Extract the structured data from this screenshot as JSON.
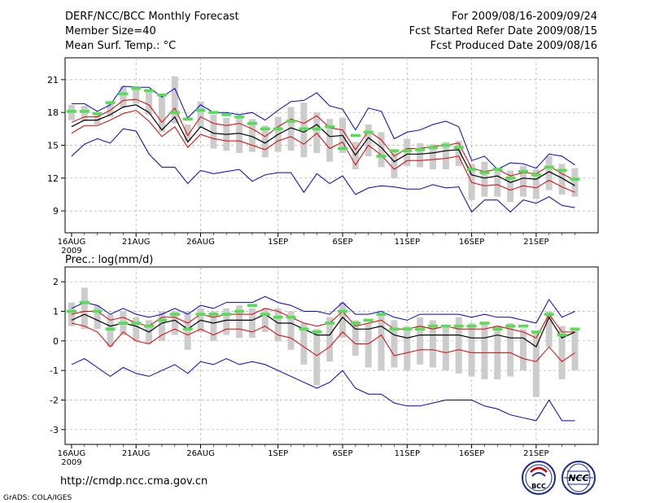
{
  "header": {
    "left": [
      "DERF/NCC/BCC Monthly Forecast",
      "Member Size=40",
      "Mean Surf. Temp.: °C"
    ],
    "right": [
      "For 2009/08/16-2009/09/24",
      "Fcst Started Refer Date 2009/08/15",
      "Fcst Produced Date 2009/08/16"
    ]
  },
  "footer": {
    "url": "http://cmdp.ncc.cma.gov.cn",
    "credit": "GrADS: COLA/IGES"
  },
  "logos": {
    "bcc": "BCC",
    "ncc": "NCC"
  },
  "colors": {
    "max_min": "#0000cc",
    "plus_minus": "#dd0000",
    "mean": "#000000",
    "obs": "#55dd55",
    "box": "#cccccc"
  },
  "chart_data": [
    {
      "type": "line",
      "title": "Mean Surf. Temp.: °C",
      "xlabel": "",
      "ylabel": "",
      "x_ticks": [
        "16AUG",
        "21AUG",
        "26AUG",
        "1SEP",
        "6SEP",
        "11SEP",
        "16SEP",
        "21SEP"
      ],
      "x_tick_days": [
        1,
        6,
        11,
        17,
        22,
        27,
        32,
        37
      ],
      "x_year_label": "2009",
      "ylim": [
        7,
        23
      ],
      "y_ticks": [
        9,
        12,
        15,
        18,
        21
      ],
      "x": [
        1,
        2,
        3,
        4,
        5,
        6,
        7,
        8,
        9,
        10,
        11,
        12,
        13,
        14,
        15,
        16,
        17,
        18,
        19,
        20,
        21,
        22,
        23,
        24,
        25,
        26,
        27,
        28,
        29,
        30,
        31,
        32,
        33,
        34,
        35,
        36,
        37,
        38,
        39,
        40
      ],
      "series": [
        {
          "name": "max",
          "values": [
            18.8,
            18.8,
            18.1,
            18.7,
            20.4,
            20.3,
            20.3,
            19.4,
            20.2,
            17.5,
            18.7,
            18.0,
            18.0,
            17.8,
            18.0,
            17.3,
            18.2,
            19.0,
            19.1,
            19.8,
            18.6,
            18.3,
            16.4,
            18.4,
            18.1,
            15.6,
            16.2,
            16.4,
            16.9,
            17.2,
            16.7,
            13.6,
            14.0,
            12.8,
            13.4,
            13.3,
            12.9,
            14.2,
            14.0,
            13.2
          ]
        },
        {
          "name": "mean+sd",
          "values": [
            17.1,
            17.6,
            17.6,
            18.2,
            19.1,
            19.2,
            18.7,
            17.1,
            18.4,
            15.9,
            17.6,
            17.0,
            16.8,
            17.0,
            16.5,
            15.8,
            16.7,
            17.4,
            17.0,
            17.7,
            16.6,
            16.4,
            14.6,
            16.3,
            15.5,
            14.0,
            14.7,
            14.7,
            14.9,
            15.0,
            15.2,
            12.9,
            12.6,
            12.8,
            12.2,
            12.5,
            12.4,
            13.1,
            12.4,
            11.8
          ]
        },
        {
          "name": "mean",
          "values": [
            16.7,
            17.3,
            17.3,
            17.8,
            18.5,
            18.7,
            18.0,
            16.4,
            17.6,
            15.3,
            16.7,
            16.1,
            16.0,
            16.1,
            15.8,
            15.2,
            16.0,
            16.6,
            16.2,
            16.9,
            15.8,
            15.9,
            14.1,
            15.7,
            14.8,
            13.5,
            14.2,
            14.2,
            14.3,
            14.5,
            14.6,
            12.3,
            12.0,
            12.2,
            11.6,
            12.0,
            11.9,
            12.6,
            12.0,
            11.3
          ]
        },
        {
          "name": "mean-sd",
          "values": [
            16.1,
            16.8,
            16.8,
            17.3,
            17.9,
            18.2,
            17.2,
            15.8,
            16.7,
            14.8,
            16.0,
            15.6,
            15.4,
            15.4,
            15.0,
            14.6,
            15.4,
            15.8,
            15.1,
            16.1,
            14.7,
            15.3,
            13.2,
            15.0,
            14.1,
            12.8,
            13.6,
            13.6,
            13.7,
            13.8,
            14.0,
            11.6,
            11.3,
            11.4,
            10.9,
            11.3,
            11.1,
            11.8,
            11.2,
            10.7
          ]
        },
        {
          "name": "min",
          "values": [
            14.0,
            15.1,
            15.6,
            15.2,
            16.5,
            16.3,
            14.2,
            13.0,
            13.0,
            11.5,
            12.7,
            12.4,
            12.6,
            12.8,
            11.7,
            12.3,
            12.5,
            12.5,
            10.7,
            12.4,
            11.5,
            12.2,
            10.5,
            11.1,
            11.3,
            11.2,
            11.0,
            11.0,
            11.4,
            11.1,
            11.2,
            8.9,
            10.0,
            10.0,
            8.9,
            10.0,
            9.7,
            10.3,
            9.5,
            9.3
          ]
        },
        {
          "name": "observed",
          "values": [
            18.1,
            18.1,
            17.9,
            18.9,
            19.7,
            20.2,
            20.0,
            19.6,
            18.0,
            17.4,
            18.2,
            18.0,
            17.8,
            17.6,
            17.0,
            16.5,
            16.5,
            17.2,
            16.5,
            16.5,
            16.7,
            14.7,
            15.9,
            16.2,
            14.0,
            14.5,
            14.5,
            14.6,
            14.8,
            15.0,
            14.8,
            12.8,
            12.5,
            12.8,
            12.0,
            12.6,
            12.3,
            13.0,
            12.7,
            11.9
          ]
        }
      ],
      "boxes": {
        "low": [
          17.3,
          17.2,
          16.9,
          17.6,
          18.5,
          18.8,
          17.8,
          16.2,
          17.0,
          15.4,
          16.6,
          14.7,
          14.5,
          14.3,
          14.4,
          13.9,
          14.4,
          14.5,
          13.9,
          14.3,
          13.5,
          14.3,
          12.8,
          14.0,
          13.0,
          12.0,
          13.1,
          13.0,
          12.8,
          12.8,
          13.1,
          10.0,
          10.3,
          10.3,
          9.8,
          10.3,
          10.1,
          10.9,
          10.5,
          10.3
        ],
        "high": [
          18.7,
          18.6,
          18.0,
          18.9,
          20.4,
          20.4,
          20.1,
          19.7,
          21.3,
          16.9,
          19.0,
          17.8,
          17.5,
          17.5,
          17.4,
          16.8,
          17.6,
          18.5,
          18.9,
          18.0,
          17.4,
          17.5,
          15.3,
          16.9,
          16.2,
          14.6,
          15.6,
          15.2,
          15.1,
          15.3,
          15.4,
          13.3,
          13.5,
          12.8,
          12.7,
          13.1,
          12.8,
          14.0,
          13.3,
          12.9
        ]
      }
    },
    {
      "type": "line",
      "title": "Prec.: log(mm/d)",
      "xlabel": "",
      "ylabel": "",
      "x_ticks": [
        "16AUG",
        "21AUG",
        "26AUG",
        "1SEP",
        "6SEP",
        "11SEP",
        "16SEP",
        "21SEP"
      ],
      "x_tick_days": [
        1,
        6,
        11,
        17,
        22,
        27,
        32,
        37
      ],
      "x_year_label": "2009",
      "ylim": [
        -3.5,
        2.5
      ],
      "y_ticks": [
        -3,
        -2,
        -1,
        0,
        1,
        2
      ],
      "x": [
        1,
        2,
        3,
        4,
        5,
        6,
        7,
        8,
        9,
        10,
        11,
        12,
        13,
        14,
        15,
        16,
        17,
        18,
        19,
        20,
        21,
        22,
        23,
        24,
        25,
        26,
        27,
        28,
        29,
        30,
        31,
        32,
        33,
        34,
        35,
        36,
        37,
        38,
        39,
        40
      ],
      "series": [
        {
          "name": "max",
          "values": [
            1.1,
            1.3,
            1.2,
            0.9,
            1.1,
            0.9,
            0.8,
            0.9,
            1.1,
            0.9,
            1.2,
            1.1,
            1.3,
            1.3,
            1.3,
            1.5,
            1.3,
            1.2,
            1.0,
            1.0,
            0.9,
            1.3,
            0.9,
            0.9,
            1.0,
            0.8,
            0.7,
            0.9,
            0.9,
            0.9,
            0.9,
            0.8,
            0.9,
            0.8,
            0.8,
            0.7,
            0.6,
            1.4,
            0.8,
            1.0
          ]
        },
        {
          "name": "mean+sd",
          "values": [
            0.9,
            1.0,
            1.0,
            0.7,
            0.8,
            0.6,
            0.5,
            0.8,
            0.8,
            0.6,
            0.9,
            0.8,
            0.9,
            0.9,
            0.9,
            1.1,
            1.0,
            0.8,
            0.6,
            0.5,
            0.6,
            1.0,
            0.5,
            0.6,
            0.7,
            0.4,
            0.4,
            0.5,
            0.4,
            0.5,
            0.4,
            0.4,
            0.4,
            0.5,
            0.4,
            0.3,
            0.1,
            0.9,
            0.3,
            0.3
          ]
        },
        {
          "name": "mean",
          "values": [
            0.7,
            0.9,
            0.7,
            0.5,
            0.6,
            0.5,
            0.3,
            0.6,
            0.7,
            0.4,
            0.7,
            0.6,
            0.7,
            0.7,
            0.7,
            0.9,
            0.6,
            0.6,
            0.4,
            0.2,
            0.2,
            0.8,
            0.4,
            0.4,
            0.5,
            0.2,
            0.1,
            0.2,
            0.2,
            0.2,
            0.2,
            0.1,
            0.1,
            0.2,
            0.1,
            0.1,
            -0.2,
            0.8,
            0.1,
            0.3
          ]
        },
        {
          "name": "mean-sd",
          "values": [
            0.6,
            0.5,
            0.3,
            -0.2,
            0.3,
            0.0,
            -0.1,
            0.2,
            0.4,
            0.2,
            0.4,
            0.2,
            0.4,
            0.4,
            0.3,
            0.5,
            0.2,
            0.1,
            -0.2,
            -0.5,
            -0.2,
            0.3,
            -0.1,
            -0.1,
            0.2,
            -0.5,
            -0.4,
            -0.3,
            -0.3,
            -0.4,
            -0.3,
            -0.4,
            -0.4,
            -0.4,
            -0.4,
            -0.6,
            -0.7,
            -0.2,
            -0.7,
            -0.4
          ]
        },
        {
          "name": "min",
          "values": [
            -0.8,
            -0.6,
            -0.9,
            -1.2,
            -0.9,
            -1.1,
            -1.2,
            -1.0,
            -0.8,
            -1.1,
            -0.7,
            -0.8,
            -0.6,
            -0.8,
            -0.7,
            -0.8,
            -1.0,
            -1.2,
            -1.4,
            -1.6,
            -1.4,
            -1.0,
            -1.6,
            -1.8,
            -1.8,
            -2.1,
            -2.2,
            -2.2,
            -2.1,
            -2.0,
            -2.0,
            -2.0,
            -2.2,
            -2.3,
            -2.5,
            -2.6,
            -2.7,
            -2.0,
            -2.7,
            -2.7
          ]
        },
        {
          "name": "observed",
          "values": [
            1.0,
            1.3,
            1.0,
            0.4,
            0.6,
            0.6,
            0.5,
            0.7,
            0.9,
            0.4,
            0.9,
            0.9,
            0.9,
            1.0,
            1.2,
            0.9,
            0.8,
            0.8,
            0.4,
            0.3,
            0.6,
            1.0,
            0.6,
            0.7,
            0.9,
            0.4,
            0.4,
            0.4,
            0.5,
            0.5,
            0.5,
            0.5,
            0.6,
            0.4,
            0.5,
            0.5,
            0.3,
            0.9,
            0.2,
            0.4
          ]
        }
      ],
      "boxes": {
        "low": [
          0.5,
          0.4,
          0.4,
          -0.2,
          0.2,
          0.0,
          -0.1,
          0.0,
          0.2,
          -0.3,
          0.3,
          0.0,
          0.2,
          0.1,
          0.1,
          0.3,
          0.0,
          -0.3,
          -0.8,
          -1.5,
          -0.7,
          0.1,
          -0.5,
          -0.9,
          -1.0,
          -0.9,
          -1.0,
          -0.8,
          -0.9,
          -1.0,
          -1.1,
          -1.2,
          -1.3,
          -1.3,
          -1.2,
          -1.0,
          -1.9,
          -0.2,
          -1.3,
          -1.0
        ],
        "high": [
          1.3,
          1.8,
          1.2,
          0.9,
          1.0,
          0.8,
          0.7,
          1.0,
          1.0,
          1.0,
          1.1,
          1.0,
          1.1,
          1.2,
          1.1,
          1.1,
          1.1,
          1.0,
          0.6,
          0.4,
          0.8,
          1.3,
          0.7,
          0.6,
          0.9,
          0.7,
          0.5,
          0.8,
          0.7,
          0.5,
          0.8,
          0.6,
          0.6,
          0.5,
          0.6,
          0.4,
          0.3,
          1.0,
          0.5,
          0.4
        ]
      }
    }
  ]
}
